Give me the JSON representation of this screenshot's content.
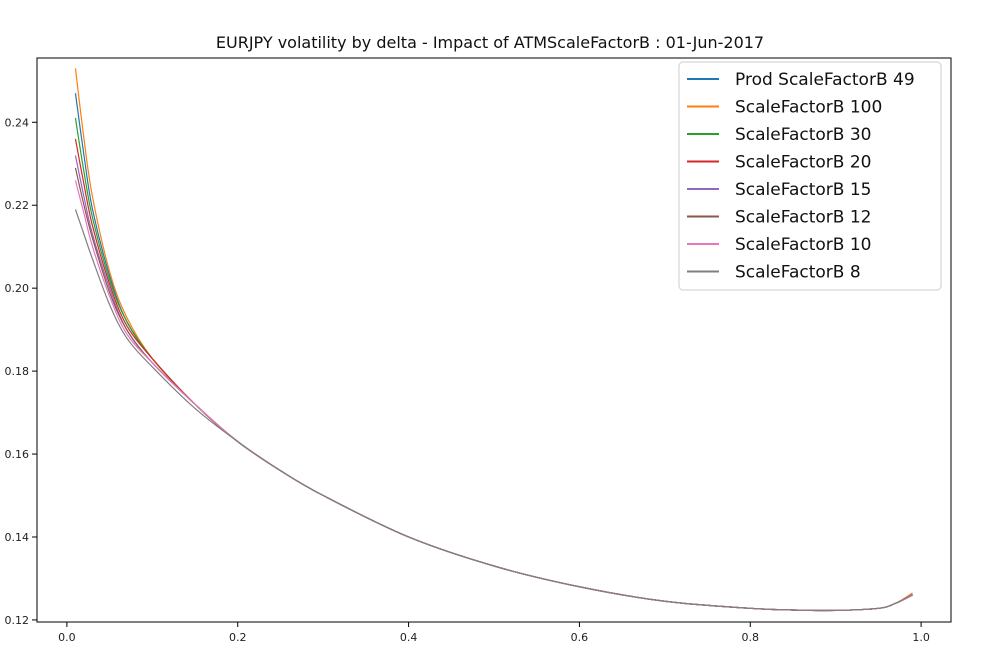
{
  "chart_data": {
    "type": "line",
    "title": "EURJPY  volatility by delta - Impact of ATMScaleFactorB : 01-Jun-2017",
    "xlabel": "",
    "ylabel": "",
    "xlim": [
      -0.035,
      1.035
    ],
    "ylim": [
      0.1195,
      0.2555
    ],
    "x_ticks": [
      0.0,
      0.2,
      0.4,
      0.6,
      0.8,
      1.0
    ],
    "x_tick_labels": [
      "0.0",
      "0.2",
      "0.4",
      "0.6",
      "0.8",
      "1.0"
    ],
    "y_ticks": [
      0.12,
      0.14,
      0.16,
      0.18,
      0.2,
      0.22,
      0.24
    ],
    "y_tick_labels": [
      "0.12",
      "0.14",
      "0.16",
      "0.18",
      "0.20",
      "0.22",
      "0.24"
    ],
    "grid": false,
    "legend_position": "top-right",
    "x": [
      0.01,
      0.02,
      0.03,
      0.05,
      0.07,
      0.1,
      0.15,
      0.2,
      0.25,
      0.3,
      0.4,
      0.5,
      0.6,
      0.7,
      0.8,
      0.85,
      0.9,
      0.95,
      0.97,
      0.99
    ],
    "series": [
      {
        "name": "Prod ScaleFactorB 49",
        "color": "#1f77b4",
        "values": [
          0.247,
          0.232,
          0.219,
          0.203,
          0.192,
          0.183,
          0.172,
          0.163,
          0.156,
          0.15,
          0.14,
          0.133,
          0.128,
          0.1245,
          0.1228,
          0.1224,
          0.1223,
          0.1228,
          0.124,
          0.126
        ]
      },
      {
        "name": "ScaleFactorB 100",
        "color": "#ff7f0e",
        "values": [
          0.253,
          0.236,
          0.222,
          0.204,
          0.193,
          0.183,
          0.172,
          0.163,
          0.156,
          0.15,
          0.14,
          0.133,
          0.128,
          0.1245,
          0.1228,
          0.1224,
          0.1223,
          0.1228,
          0.124,
          0.1265
        ]
      },
      {
        "name": "ScaleFactorB 30",
        "color": "#2ca02c",
        "values": [
          0.241,
          0.228,
          0.217,
          0.202,
          0.192,
          0.183,
          0.172,
          0.163,
          0.156,
          0.15,
          0.14,
          0.133,
          0.128,
          0.1245,
          0.1228,
          0.1224,
          0.1223,
          0.1228,
          0.124,
          0.126
        ]
      },
      {
        "name": "ScaleFactorB 20",
        "color": "#d62728",
        "values": [
          0.236,
          0.225,
          0.215,
          0.201,
          0.191,
          0.183,
          0.172,
          0.163,
          0.156,
          0.15,
          0.14,
          0.133,
          0.128,
          0.1245,
          0.1228,
          0.1224,
          0.1223,
          0.1228,
          0.124,
          0.126
        ]
      },
      {
        "name": "ScaleFactorB 15",
        "color": "#9467bd",
        "values": [
          0.232,
          0.222,
          0.213,
          0.2,
          0.19,
          0.182,
          0.172,
          0.163,
          0.156,
          0.15,
          0.14,
          0.133,
          0.128,
          0.1245,
          0.1228,
          0.1224,
          0.1223,
          0.1228,
          0.124,
          0.126
        ]
      },
      {
        "name": "ScaleFactorB 12",
        "color": "#8c564b",
        "values": [
          0.229,
          0.22,
          0.212,
          0.199,
          0.19,
          0.182,
          0.172,
          0.163,
          0.156,
          0.15,
          0.14,
          0.133,
          0.128,
          0.1245,
          0.1228,
          0.1224,
          0.1223,
          0.1228,
          0.124,
          0.126
        ]
      },
      {
        "name": "ScaleFactorB 10",
        "color": "#e377c2",
        "values": [
          0.226,
          0.218,
          0.21,
          0.198,
          0.189,
          0.182,
          0.172,
          0.163,
          0.156,
          0.15,
          0.14,
          0.133,
          0.128,
          0.1245,
          0.1228,
          0.1224,
          0.1223,
          0.1228,
          0.124,
          0.126
        ]
      },
      {
        "name": "ScaleFactorB 8",
        "color": "#7f7f7f",
        "values": [
          0.219,
          0.213,
          0.207,
          0.196,
          0.188,
          0.181,
          0.171,
          0.163,
          0.156,
          0.15,
          0.14,
          0.133,
          0.128,
          0.1245,
          0.1228,
          0.1224,
          0.1223,
          0.1228,
          0.124,
          0.1262
        ]
      }
    ]
  }
}
